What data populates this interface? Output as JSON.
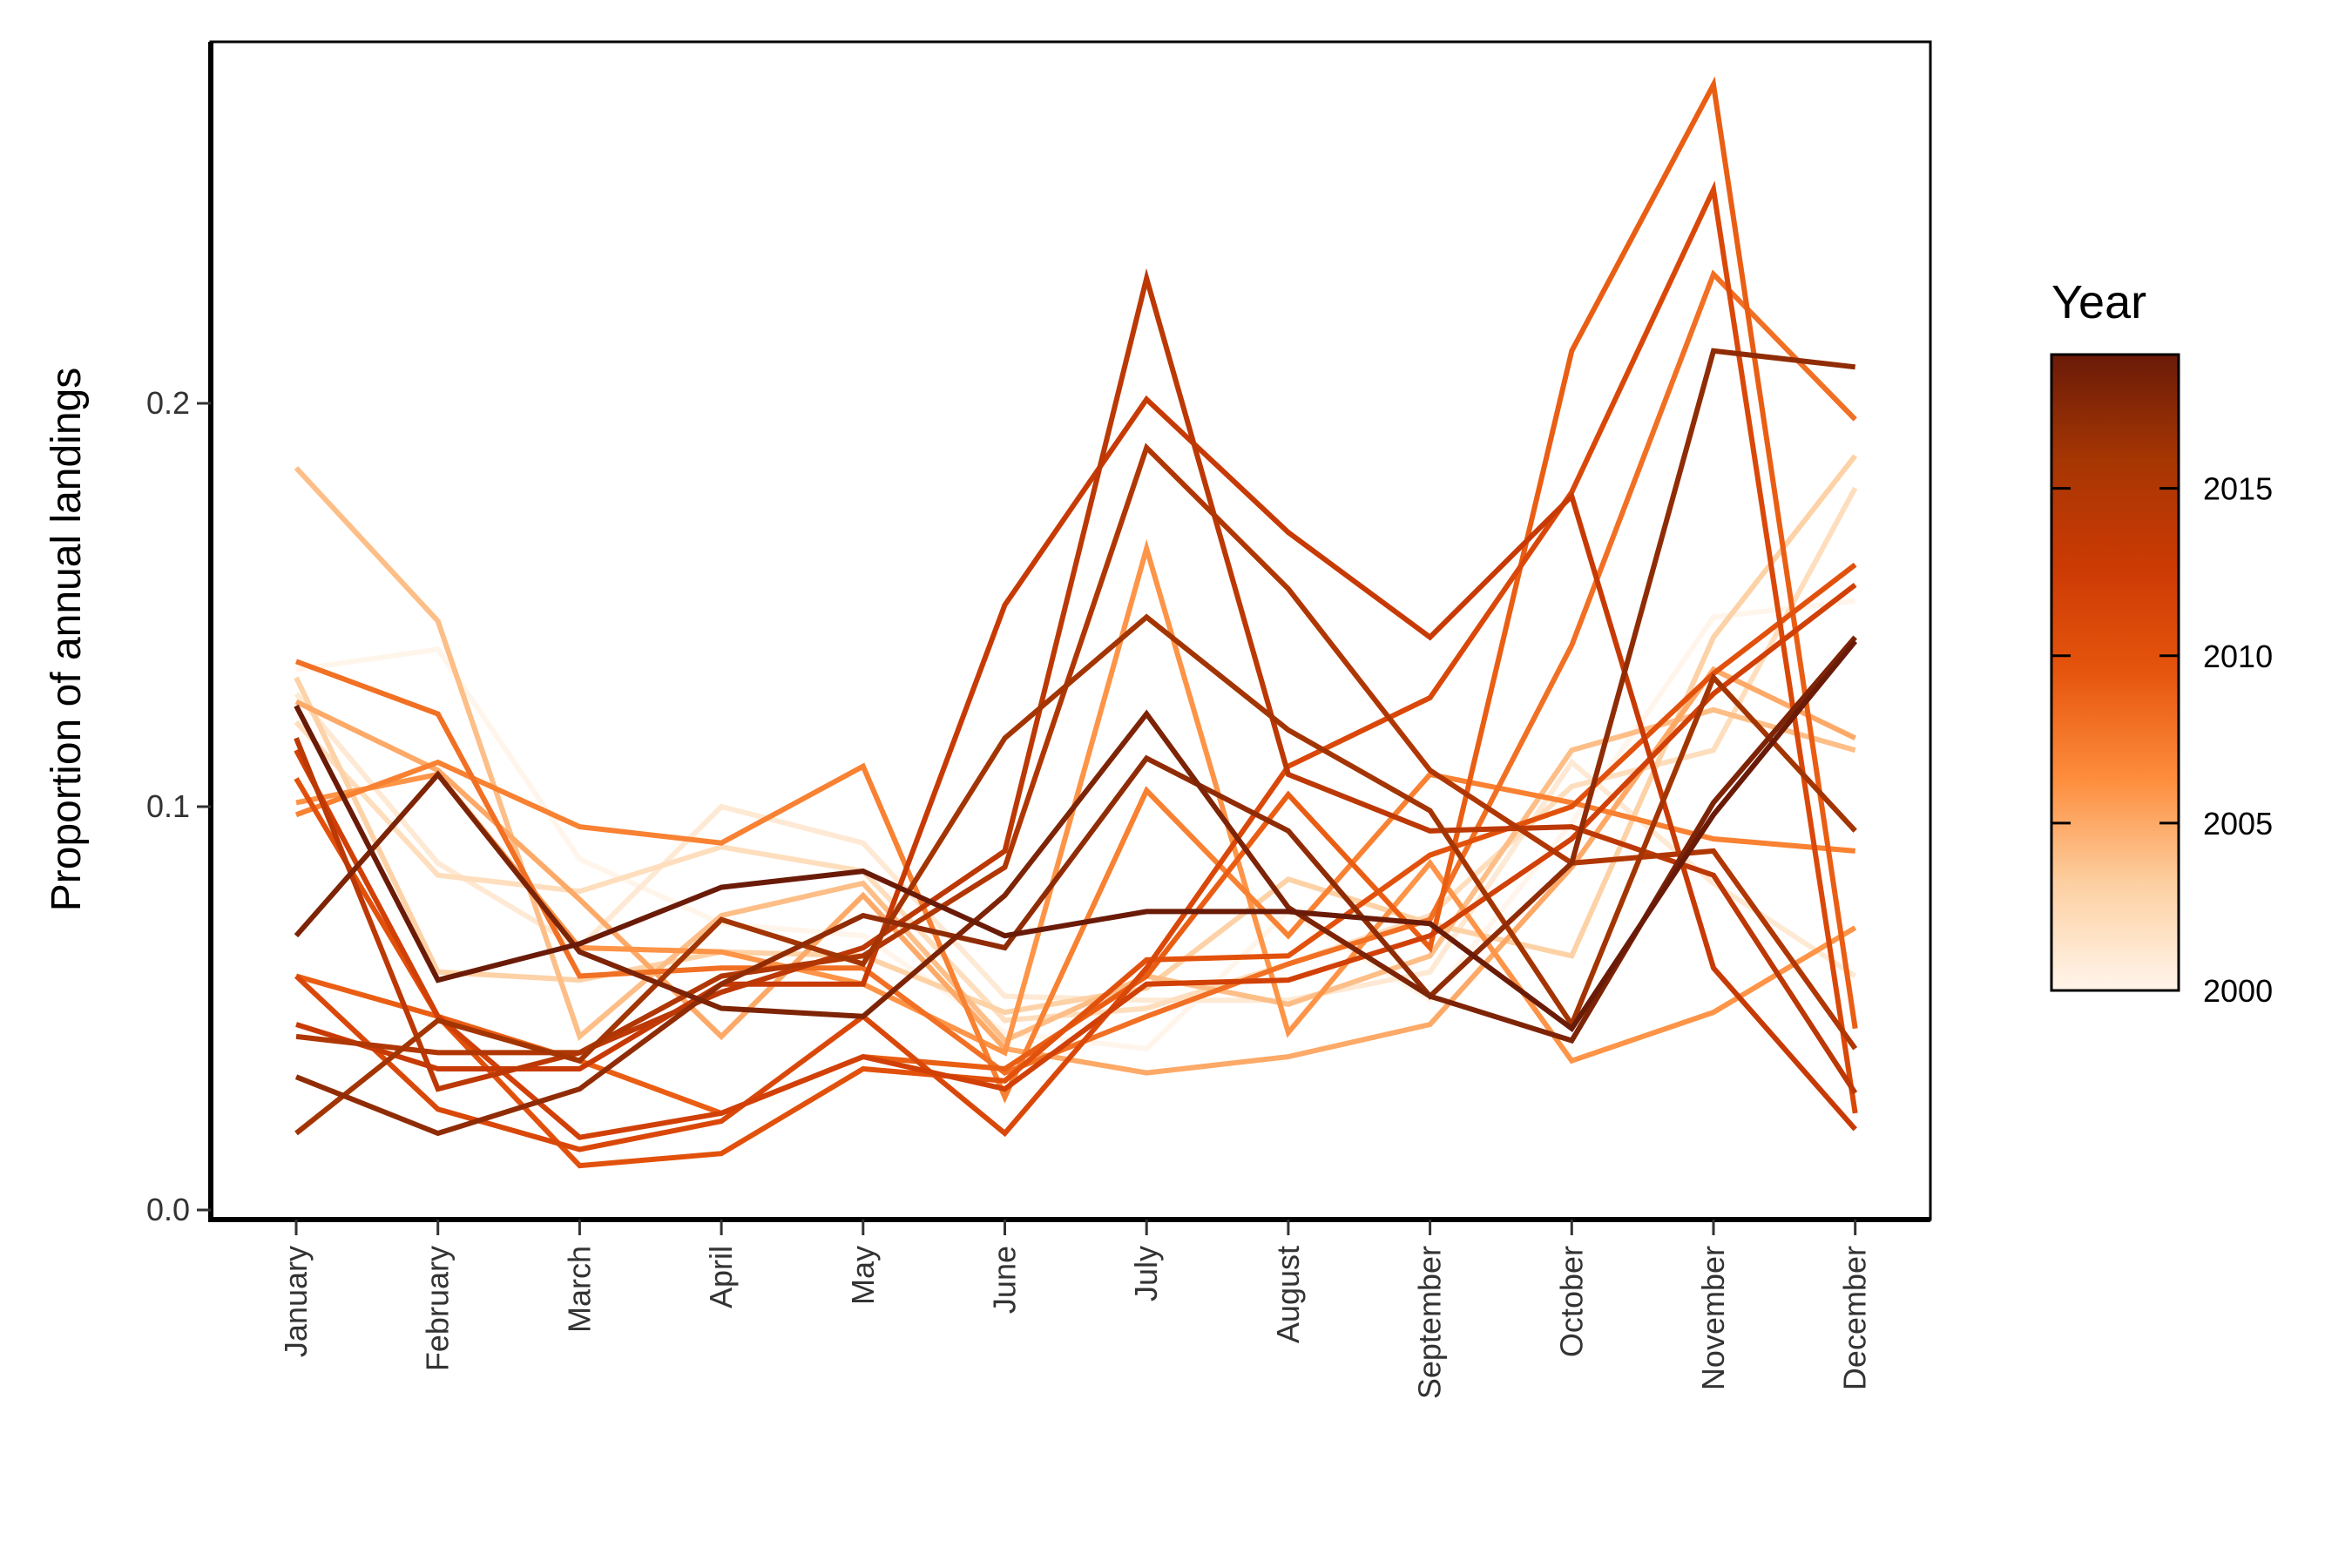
{
  "chart_data": {
    "type": "line",
    "xlabel": "",
    "ylabel": "Proportion of annual landings",
    "categories": [
      "January",
      "February",
      "March",
      "April",
      "May",
      "June",
      "July",
      "August",
      "September",
      "October",
      "November",
      "December"
    ],
    "ylim": [
      -0.003,
      0.29
    ],
    "y_ticks": [
      0.0,
      0.1,
      0.2
    ],
    "y_tick_labels": [
      "0.0",
      "0.1",
      "0.2"
    ],
    "grid": false,
    "legend": {
      "title": "Year",
      "placement": "right",
      "type": "colorbar",
      "range": [
        2000,
        2019
      ],
      "ticks": [
        2000,
        2005,
        2010,
        2015
      ],
      "tick_labels": [
        "2000",
        "2005",
        "2010",
        "2015"
      ],
      "colors": [
        "#fff5eb",
        "#fdd0a2",
        "#fd8d3c",
        "#e6550d",
        "#cc3a04",
        "#a63603",
        "#6a1b08"
      ]
    },
    "series": [
      {
        "year": 2000,
        "values": [
          0.134,
          0.139,
          0.087,
          0.071,
          0.068,
          0.044,
          0.04,
          0.074,
          0.052,
          0.096,
          0.147,
          0.151
        ]
      },
      {
        "year": 2001,
        "values": [
          0.128,
          0.086,
          0.065,
          0.1,
          0.091,
          0.053,
          0.052,
          0.052,
          0.059,
          0.111,
          0.081,
          0.058
        ]
      },
      {
        "year": 2002,
        "values": [
          0.121,
          0.083,
          0.079,
          0.09,
          0.084,
          0.047,
          0.05,
          0.061,
          0.073,
          0.105,
          0.114,
          0.179
        ]
      },
      {
        "year": 2003,
        "values": [
          0.132,
          0.059,
          0.057,
          0.064,
          0.063,
          0.049,
          0.055,
          0.082,
          0.071,
          0.063,
          0.142,
          0.187
        ]
      },
      {
        "year": 2004,
        "values": [
          0.184,
          0.146,
          0.043,
          0.073,
          0.081,
          0.042,
          0.058,
          0.051,
          0.063,
          0.114,
          0.124,
          0.114
        ]
      },
      {
        "year": 2005,
        "values": [
          0.126,
          0.109,
          0.077,
          0.043,
          0.078,
          0.04,
          0.034,
          0.038,
          0.046,
          0.085,
          0.134,
          0.117
        ]
      },
      {
        "year": 2006,
        "values": [
          0.101,
          0.108,
          0.065,
          0.064,
          0.056,
          0.039,
          0.164,
          0.044,
          0.086,
          0.037,
          0.049,
          0.07
        ]
      },
      {
        "year": 2007,
        "values": [
          0.098,
          0.111,
          0.095,
          0.091,
          0.11,
          0.028,
          0.104,
          0.068,
          0.108,
          0.101,
          0.092,
          0.089
        ]
      },
      {
        "year": 2008,
        "values": [
          0.136,
          0.123,
          0.058,
          0.06,
          0.06,
          0.034,
          0.048,
          0.061,
          0.072,
          0.14,
          0.232,
          0.196
        ]
      },
      {
        "year": 2009,
        "values": [
          0.058,
          0.048,
          0.037,
          0.024,
          0.038,
          0.035,
          0.058,
          0.103,
          0.065,
          0.213,
          0.279,
          0.045
        ]
      },
      {
        "year": 2010,
        "values": [
          0.107,
          0.048,
          0.011,
          0.014,
          0.035,
          0.032,
          0.062,
          0.063,
          0.088,
          0.1,
          0.133,
          0.16
        ]
      },
      {
        "year": 2011,
        "values": [
          0.058,
          0.025,
          0.015,
          0.022,
          0.048,
          0.019,
          0.06,
          0.11,
          0.127,
          0.178,
          0.253,
          0.024
        ]
      },
      {
        "year": 2012,
        "values": [
          0.114,
          0.048,
          0.018,
          0.024,
          0.038,
          0.03,
          0.056,
          0.057,
          0.068,
          0.092,
          0.128,
          0.155
        ]
      },
      {
        "year": 2013,
        "values": [
          0.046,
          0.035,
          0.035,
          0.056,
          0.056,
          0.15,
          0.201,
          0.168,
          0.142,
          0.177,
          0.06,
          0.02
        ]
      },
      {
        "year": 2014,
        "values": [
          0.117,
          0.03,
          0.039,
          0.054,
          0.065,
          0.089,
          0.231,
          0.108,
          0.094,
          0.095,
          0.083,
          0.029
        ]
      },
      {
        "year": 2015,
        "values": [
          0.043,
          0.039,
          0.039,
          0.058,
          0.063,
          0.085,
          0.189,
          0.154,
          0.109,
          0.086,
          0.089,
          0.04
        ]
      },
      {
        "year": 2016,
        "values": [
          0.019,
          0.047,
          0.037,
          0.072,
          0.061,
          0.117,
          0.147,
          0.119,
          0.099,
          0.046,
          0.132,
          0.094
        ]
      },
      {
        "year": 2017,
        "values": [
          0.033,
          0.019,
          0.03,
          0.056,
          0.073,
          0.065,
          0.112,
          0.094,
          0.053,
          0.086,
          0.213,
          0.209
        ]
      },
      {
        "year": 2018,
        "values": [
          0.068,
          0.108,
          0.064,
          0.05,
          0.048,
          0.078,
          0.123,
          0.075,
          0.053,
          0.042,
          0.101,
          0.142
        ]
      },
      {
        "year": 2019,
        "values": [
          0.125,
          0.057,
          0.066,
          0.08,
          0.084,
          0.068,
          0.074,
          0.074,
          0.071,
          0.045,
          0.098,
          0.141
        ]
      }
    ]
  }
}
